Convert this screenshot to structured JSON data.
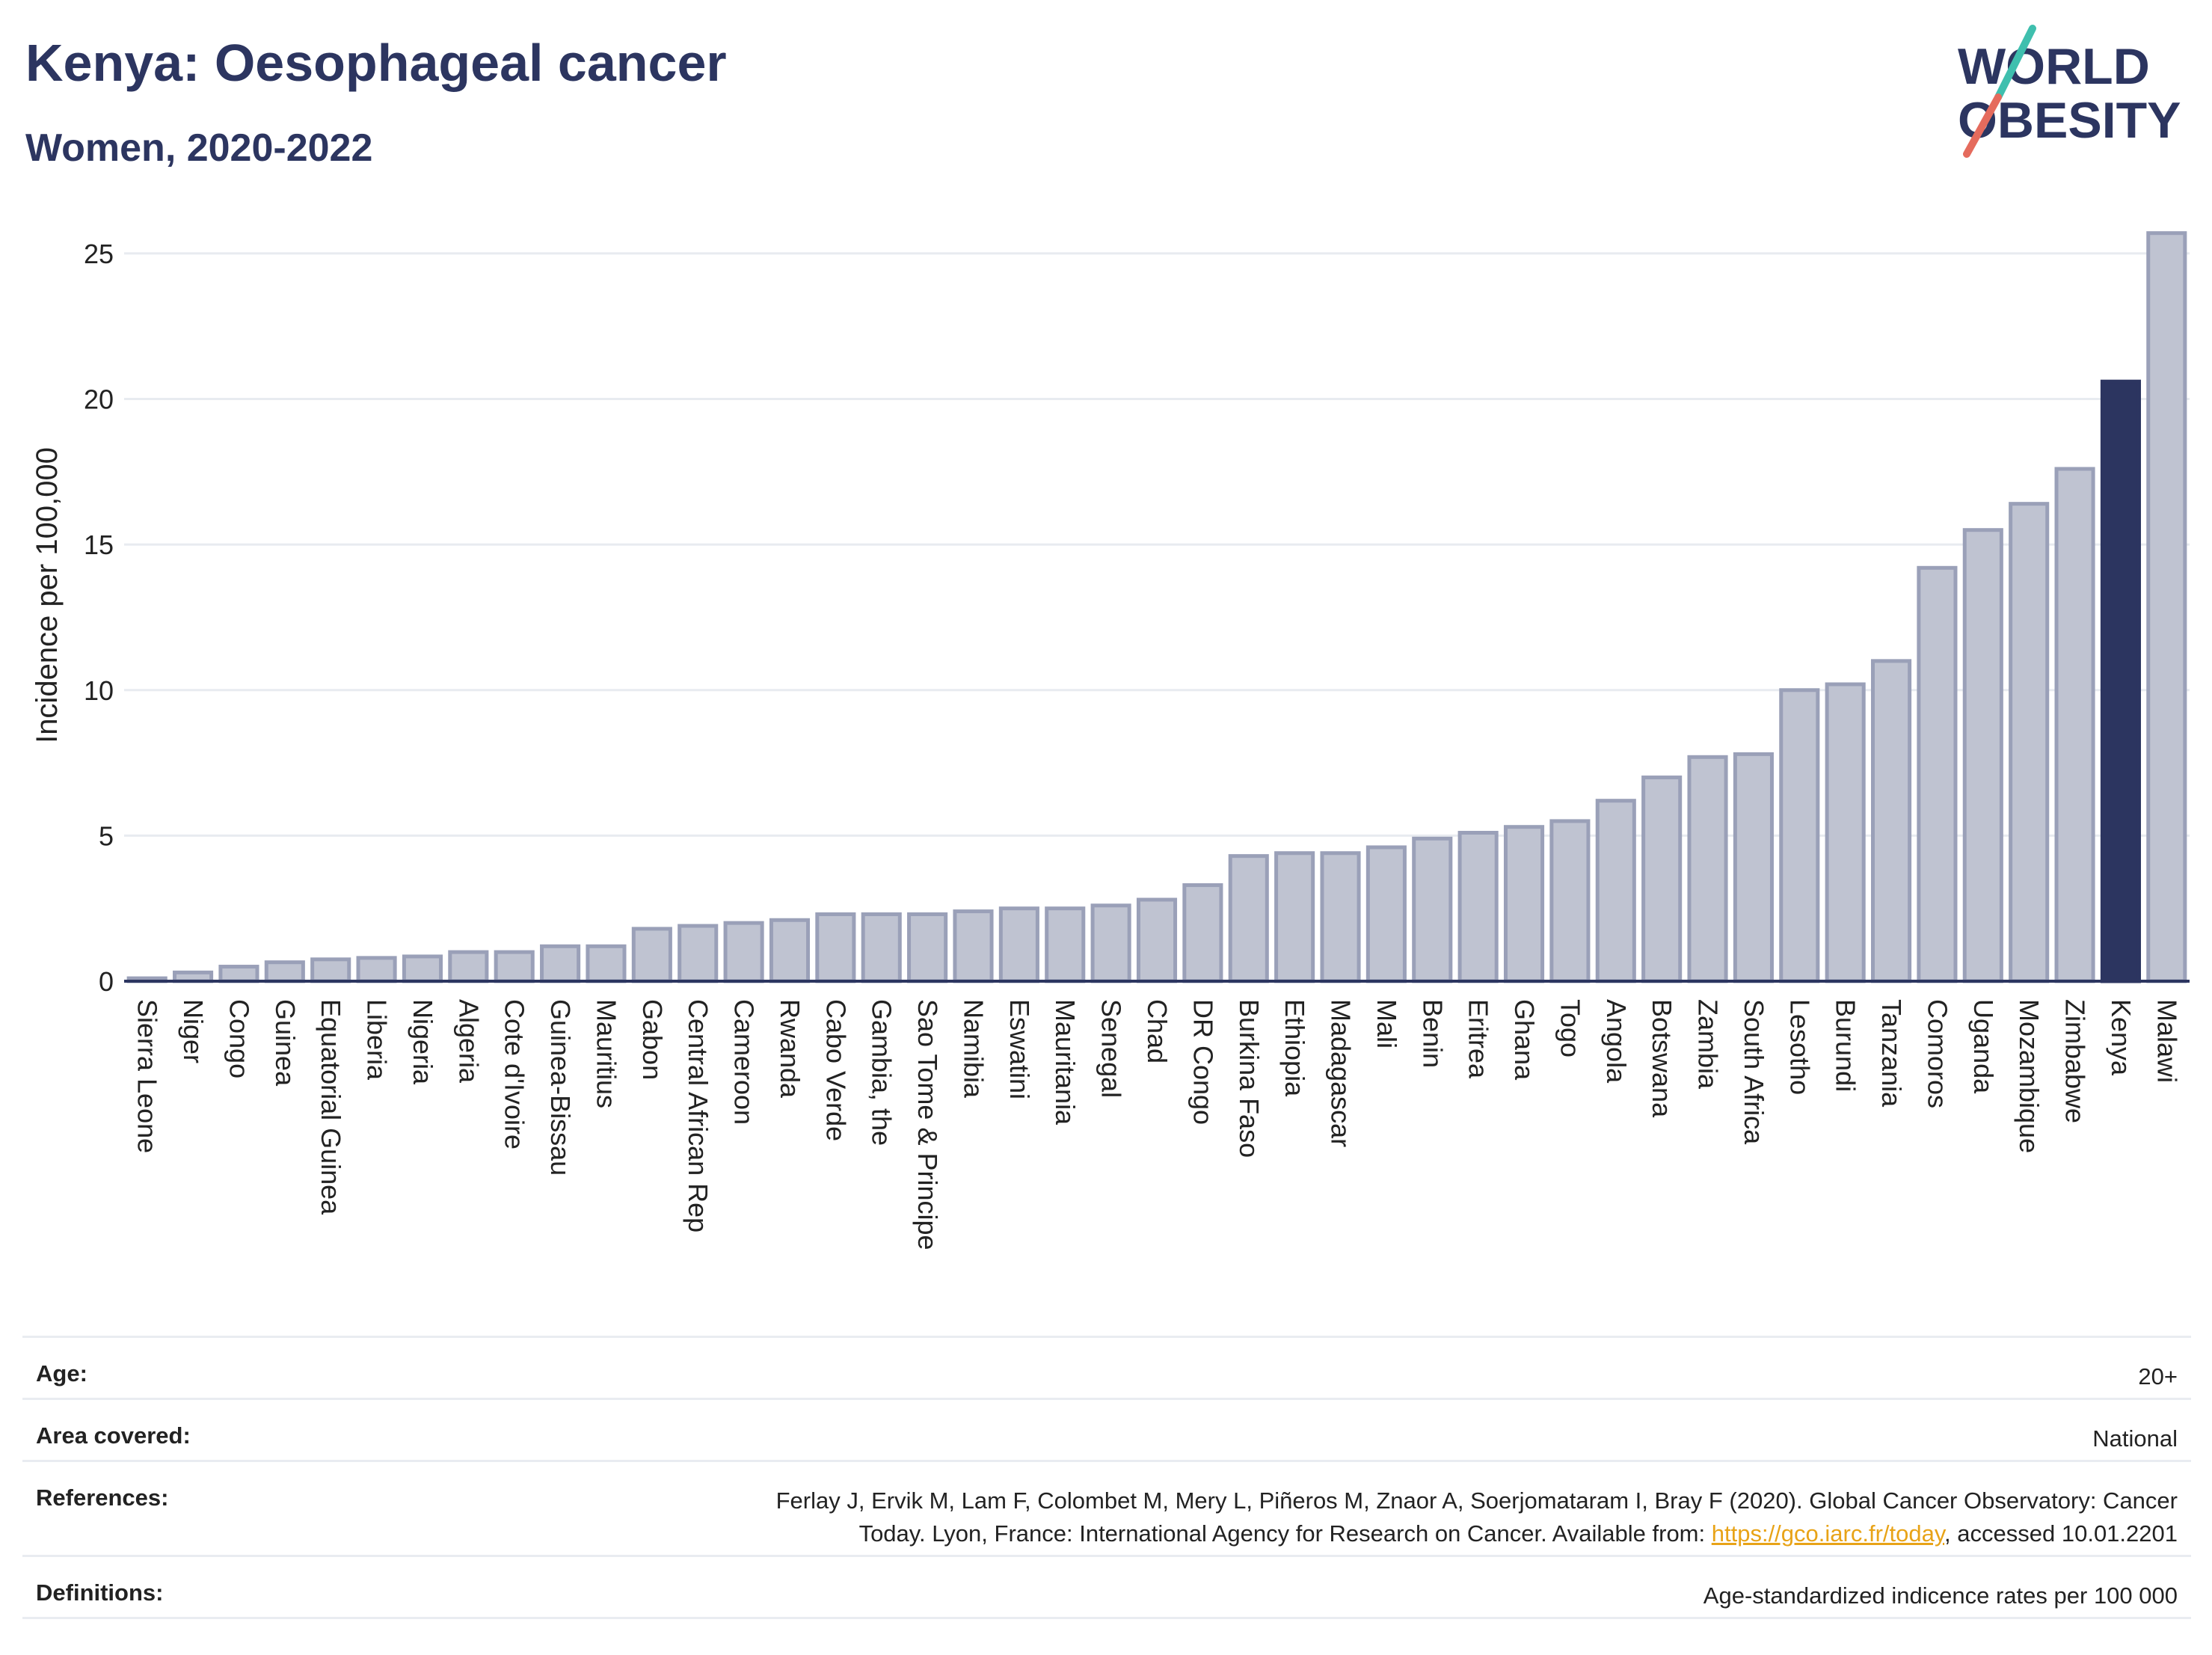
{
  "header": {
    "title": "Kenya: Oesophageal cancer",
    "subtitle": "Women, 2020-2022"
  },
  "logo": {
    "line1": "WORLD",
    "line2": "OBESITY"
  },
  "colors": {
    "bar": "#bfc3d1",
    "bar_stroke": "#9aa0b8",
    "highlight": "#2c3560",
    "grid": "#e8ebf0"
  },
  "chart_data": {
    "type": "bar",
    "ylabel": "Incidence per 100,000",
    "ylim": [
      0,
      26
    ],
    "yticks": [
      0,
      5,
      10,
      15,
      20,
      25
    ],
    "grid": true,
    "highlight": "Kenya",
    "categories": [
      "Sierra Leone",
      "Niger",
      "Congo",
      "Guinea",
      "Equatorial Guinea",
      "Liberia",
      "Nigeria",
      "Algeria",
      "Cote d'Ivoire",
      "Guinea-Bissau",
      "Mauritius",
      "Gabon",
      "Central African Rep",
      "Cameroon",
      "Rwanda",
      "Cabo Verde",
      "Gambia, the",
      "Sao Tome & Principe",
      "Namibia",
      "Eswatini",
      "Mauritania",
      "Senegal",
      "Chad",
      "DR Congo",
      "Burkina Faso",
      "Ethiopia",
      "Madagascar",
      "Mali",
      "Benin",
      "Eritrea",
      "Ghana",
      "Togo",
      "Angola",
      "Botswana",
      "Zambia",
      "South Africa",
      "Lesotho",
      "Burundi",
      "Tanzania",
      "Comoros",
      "Uganda",
      "Mozambique",
      "Zimbabwe",
      "Kenya",
      "Malawi"
    ],
    "values": [
      0.1,
      0.3,
      0.5,
      0.65,
      0.75,
      0.8,
      0.85,
      1.0,
      1.0,
      1.2,
      1.2,
      1.8,
      1.9,
      2.0,
      2.1,
      2.3,
      2.3,
      2.3,
      2.4,
      2.5,
      2.5,
      2.6,
      2.8,
      3.3,
      4.3,
      4.4,
      4.4,
      4.6,
      4.9,
      5.1,
      5.3,
      5.5,
      6.2,
      7.0,
      7.7,
      7.8,
      10.0,
      10.2,
      11.0,
      14.2,
      15.5,
      16.4,
      17.6,
      20.6,
      25.7
    ]
  },
  "meta": {
    "age": {
      "label": "Age:",
      "value": "20+"
    },
    "area": {
      "label": "Area covered:",
      "value": "National"
    },
    "references": {
      "label": "References:",
      "line1": "Ferlay J, Ervik M, Lam F, Colombet M, Mery L, Piñeros M, Znaor A, Soerjomataram I, Bray F (2020). Global Cancer Observatory: Cancer",
      "line2_pre": "Today. Lyon, France: International Agency for Research on Cancer. Available from: ",
      "link": "https://gco.iarc.fr/today",
      "line2_post": ", accessed 10.01.2201"
    },
    "definitions": {
      "label": "Definitions:",
      "value": "Age-standardized indicence rates per 100 000"
    }
  }
}
